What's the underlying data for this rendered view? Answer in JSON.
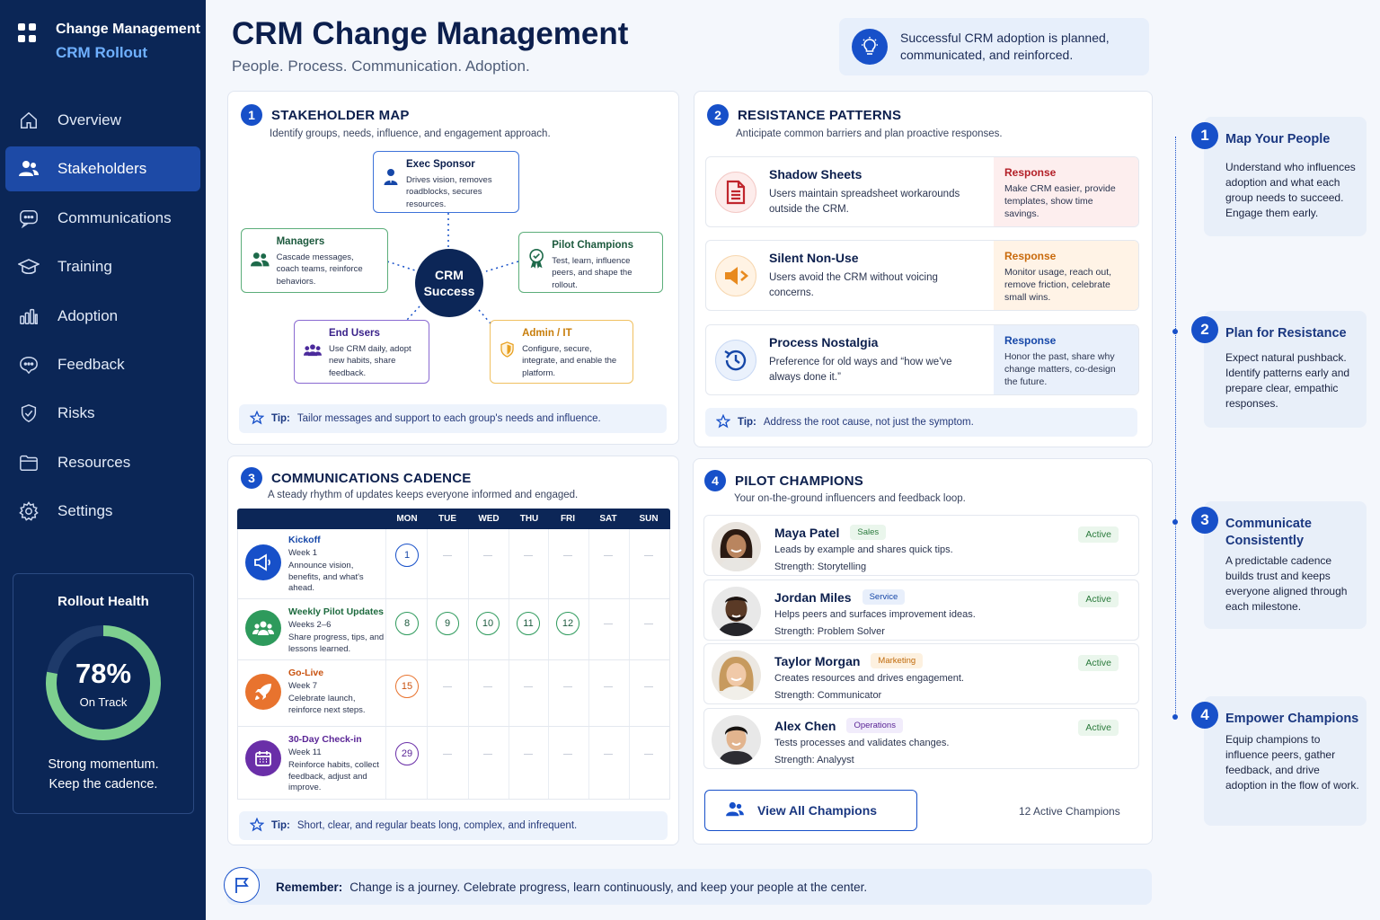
{
  "app": {
    "title": "Change Management",
    "subtitle": "CRM Rollout"
  },
  "nav": [
    {
      "label": "Overview",
      "icon": "home-icon"
    },
    {
      "label": "Stakeholders",
      "icon": "users-icon",
      "active": true
    },
    {
      "label": "Communications",
      "icon": "chat-icon"
    },
    {
      "label": "Training",
      "icon": "graduation-cap-icon"
    },
    {
      "label": "Adoption",
      "icon": "bar-chart-icon"
    },
    {
      "label": "Feedback",
      "icon": "feedback-icon"
    },
    {
      "label": "Risks",
      "icon": "shield-icon"
    },
    {
      "label": "Resources",
      "icon": "folder-icon"
    },
    {
      "label": "Settings",
      "icon": "gear-icon"
    }
  ],
  "health": {
    "title": "Rollout Health",
    "percent": "78%",
    "percent_value": 78,
    "status": "On Track",
    "note_line1": "Strong momentum.",
    "note_line2": "Keep the cadence."
  },
  "header": {
    "title": "CRM Change Management",
    "subtitle": "People. Process. Communication. Adoption.",
    "banner": "Successful CRM adoption is planned, communicated, and reinforced."
  },
  "stakeholder_map": {
    "number": "1",
    "title": "STAKEHOLDER MAP",
    "description": "Identify groups, needs, influence, and engagement approach.",
    "hub": "CRM Success",
    "nodes": {
      "exec": {
        "title": "Exec Sponsor",
        "desc": "Drives vision, removes roadblocks, secures resources."
      },
      "managers": {
        "title": "Managers",
        "desc": "Cascade messages, coach teams, reinforce behaviors."
      },
      "pilot": {
        "title": "Pilot Champions",
        "desc": "Test, learn, influence peers, and shape the rollout."
      },
      "endusers": {
        "title": "End Users",
        "desc": "Use CRM daily, adopt new habits, share feedback."
      },
      "admin": {
        "title": "Admin / IT",
        "desc": "Configure, secure, integrate, and enable the platform."
      }
    },
    "tip_label": "Tip:",
    "tip": "Tailor messages and support to each group's needs and influence."
  },
  "resistance": {
    "number": "2",
    "title": "RESISTANCE PATTERNS",
    "description": "Anticipate common barriers and plan proactive responses.",
    "response_label": "Response",
    "items": [
      {
        "title": "Shadow Sheets",
        "desc": "Users maintain spreadsheet workarounds outside the CRM.",
        "response": "Make CRM easier, provide templates, show time savings."
      },
      {
        "title": "Silent Non-Use",
        "desc": "Users avoid the CRM without voicing concerns.",
        "response": "Monitor usage, reach out, remove friction, celebrate small wins."
      },
      {
        "title": "Process Nostalgia",
        "desc": "Preference for old ways and “how we've always done it.”",
        "response": "Honor the past, share why change matters, co-design the future."
      }
    ],
    "tip_label": "Tip:",
    "tip": "Address the root cause, not just the symptom."
  },
  "cadence": {
    "number": "3",
    "title": "COMMUNICATIONS CADENCE",
    "description": "A steady rhythm of updates keeps everyone informed and engaged.",
    "days": [
      "MON",
      "TUE",
      "WED",
      "THU",
      "FRI",
      "SAT",
      "SUN"
    ],
    "events": [
      {
        "title": "Kickoff",
        "week": "Week 1",
        "desc": "Announce vision, benefits, and what's ahead.",
        "dates": [
          "1"
        ]
      },
      {
        "title": "Weekly Pilot Updates",
        "week": "Weeks 2–6",
        "desc": "Share progress, tips, and lessons learned.",
        "dates": [
          "8",
          "9",
          "10",
          "11",
          "12"
        ]
      },
      {
        "title": "Go-Live",
        "week": "Week 7",
        "desc": "Celebrate launch, reinforce next steps.",
        "dates": [
          "15"
        ]
      },
      {
        "title": "30-Day Check-in",
        "week": "Week 11",
        "desc": "Reinforce habits, collect feedback, adjust and improve.",
        "dates": [
          "29"
        ]
      }
    ],
    "tip_label": "Tip:",
    "tip": "Short, clear, and regular beats long, complex, and infrequent."
  },
  "champions": {
    "number": "4",
    "title": "PILOT CHAMPIONS",
    "description": "Your on-the-ground influencers and feedback loop.",
    "strength_label": "Strength:",
    "people": [
      {
        "name": "Maya Patel",
        "dept": "Sales",
        "desc": "Leads by example and shares quick tips.",
        "strength": "Storytelling",
        "status": "Active"
      },
      {
        "name": "Jordan Miles",
        "dept": "Service",
        "desc": "Helps peers and surfaces improvement ideas.",
        "strength": "Problem Solver",
        "status": "Active"
      },
      {
        "name": "Taylor Morgan",
        "dept": "Marketing",
        "desc": "Creates resources and drives engagement.",
        "strength": "Communicator",
        "status": "Active"
      },
      {
        "name": "Alex Chen",
        "dept": "Operations",
        "desc": "Tests processes and validates changes.",
        "strength": "Analyyst",
        "status": "Active"
      }
    ],
    "view_all": "View All Champions",
    "active_count": "12 Active Champions"
  },
  "steps": [
    {
      "number": "1",
      "title": "Map Your People",
      "desc": "Understand who influences adoption and what each group needs to succeed. Engage them early."
    },
    {
      "number": "2",
      "title": "Plan for Resistance",
      "desc": "Expect natural pushback. Identify patterns early and prepare clear, empathic responses."
    },
    {
      "number": "3",
      "title": "Communicate Consistently",
      "desc": "A predictable cadence builds trust and keeps everyone aligned through each milestone."
    },
    {
      "number": "4",
      "title": "Empower Champions",
      "desc": "Equip champions to influence peers, gather feedback, and drive adoption in the flow of work."
    }
  ],
  "footer": {
    "label": "Remember:",
    "text": "Change is a journey. Celebrate progress, learn continuously, and keep your people at the center."
  },
  "colors": {
    "navy": "#0b2656",
    "accent": "#1750c9",
    "green": "#2e9a5c",
    "orange": "#e8732e",
    "purple": "#6a2fa8",
    "active_green": "#2a7a3c"
  }
}
